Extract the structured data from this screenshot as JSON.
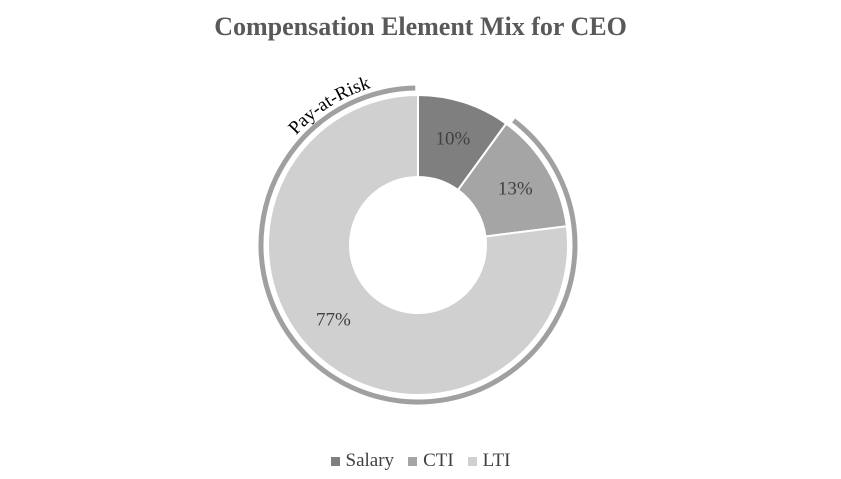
{
  "chart_data": {
    "type": "pie",
    "title": "Compensation Element Mix for CEO",
    "categories": [
      "Salary",
      "CTI",
      "LTI"
    ],
    "values": [
      10,
      13,
      77
    ],
    "labels": [
      "10%",
      "13%",
      "77%"
    ],
    "colors": [
      "#7f7f7f",
      "#a5a5a5",
      "#d0d0d0"
    ],
    "donut": true,
    "annotation": "Pay-at-Risk",
    "legend_position": "bottom"
  }
}
